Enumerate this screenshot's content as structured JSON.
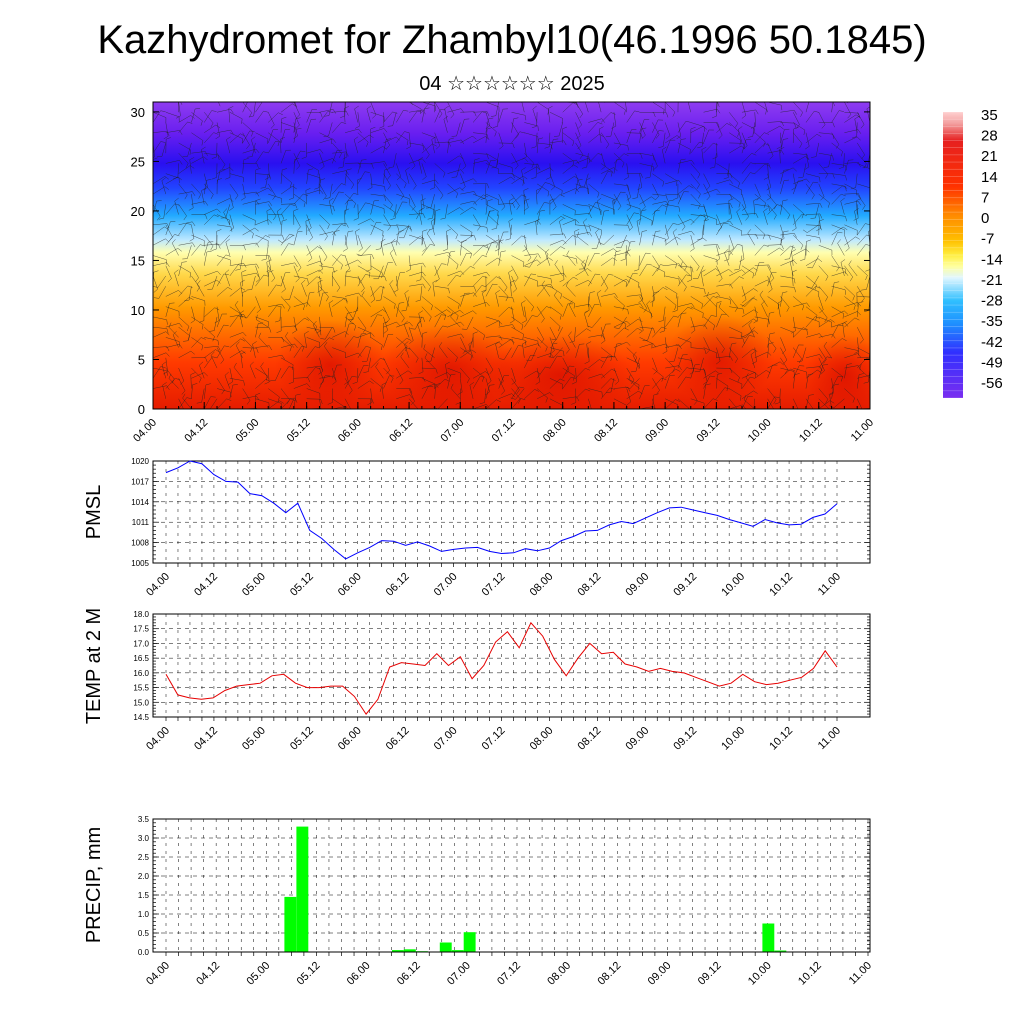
{
  "title": "Kazhydromet for Zhambyl10(46.1996 50.1845)",
  "subtitle": "04 ☆☆☆☆☆☆ 2025",
  "chart_data": [
    {
      "type": "heatmap",
      "ylim": [
        0,
        31
      ],
      "y_ticks": [
        "0",
        "5",
        "10",
        "15",
        "20",
        "25",
        "30"
      ],
      "x_ticks": [
        "04.00",
        "04.12",
        "05.00",
        "05.12",
        "06.00",
        "06.12",
        "07.00",
        "07.12",
        "08.00",
        "08.12",
        "09.00",
        "09.12",
        "10.00",
        "10.12",
        "11.00"
      ],
      "colorbar_labels": [
        "35",
        "28",
        "21",
        "14",
        "7",
        "0",
        "-7",
        "-14",
        "-21",
        "-28",
        "-35",
        "-42",
        "-49",
        "-56"
      ],
      "colors": {
        "warm": "#e60000",
        "mid": "#ffff80",
        "cold": "#3300ff",
        "top": "#8a2be2"
      },
      "overlay": "wind barbs"
    },
    {
      "type": "line",
      "ylabel": "PMSL",
      "ylim": [
        1005,
        1020
      ],
      "y_ticks": [
        "1005",
        "1008",
        "1011",
        "1014",
        "1017",
        "1020"
      ],
      "x_ticks": [
        "04.00",
        "04.12",
        "05.00",
        "05.12",
        "06.00",
        "06.12",
        "07.00",
        "07.12",
        "08.00",
        "08.12",
        "09.00",
        "09.12",
        "10.00",
        "10.12",
        "11.00"
      ],
      "color": "#0000ff",
      "values": [
        1018.3,
        1019.0,
        1020.0,
        1019.6,
        1018.0,
        1017.0,
        1016.9,
        1015.2,
        1014.9,
        1013.8,
        1012.4,
        1013.8,
        1009.8,
        1008.6,
        1007.0,
        1005.6,
        1006.5,
        1007.3,
        1008.3,
        1008.2,
        1007.6,
        1008.1,
        1007.5,
        1006.7,
        1007.0,
        1007.2,
        1007.3,
        1006.7,
        1006.4,
        1006.5,
        1007.1,
        1006.8,
        1007.2,
        1008.3,
        1008.9,
        1009.7,
        1009.8,
        1010.6,
        1011.1,
        1010.8,
        1011.6,
        1012.4,
        1013.1,
        1013.2,
        1012.8,
        1012.4,
        1012.0,
        1011.4,
        1010.9,
        1010.4,
        1011.4,
        1010.9,
        1010.6,
        1010.7,
        1011.7,
        1012.2,
        1013.7
      ]
    },
    {
      "type": "line",
      "ylabel": "TEMP at 2 M",
      "ylim": [
        14.5,
        18.0
      ],
      "y_ticks": [
        "14.5",
        "15.0",
        "15.5",
        "16.0",
        "16.5",
        "17.0",
        "17.5",
        "18.0"
      ],
      "x_ticks": [
        "04.00",
        "04.12",
        "05.00",
        "05.12",
        "06.00",
        "06.12",
        "07.00",
        "07.12",
        "08.00",
        "08.12",
        "09.00",
        "09.12",
        "10.00",
        "10.12",
        "11.00"
      ],
      "color": "#e60000",
      "values": [
        15.95,
        15.25,
        15.15,
        15.1,
        15.15,
        15.4,
        15.55,
        15.6,
        15.65,
        15.9,
        15.95,
        15.65,
        15.5,
        15.5,
        15.55,
        15.55,
        15.2,
        14.6,
        15.1,
        16.2,
        16.35,
        16.3,
        16.25,
        16.65,
        16.25,
        16.55,
        15.8,
        16.25,
        17.05,
        17.4,
        16.85,
        17.7,
        17.25,
        16.45,
        15.9,
        16.5,
        17.0,
        16.65,
        16.7,
        16.3,
        16.2,
        16.05,
        16.15,
        16.05,
        16.0,
        15.85,
        15.7,
        15.55,
        15.65,
        15.95,
        15.7,
        15.6,
        15.65,
        15.75,
        15.85,
        16.15,
        16.75,
        16.2
      ]
    },
    {
      "type": "bar",
      "ylabel": "PRECIP, mm",
      "ylim": [
        0,
        3.5
      ],
      "y_ticks": [
        "0.0",
        "0.5",
        "1.0",
        "1.5",
        "2.0",
        "2.5",
        "3.0",
        "3.5"
      ],
      "x_ticks": [
        "04.00",
        "04.12",
        "05.00",
        "05.12",
        "06.00",
        "06.12",
        "07.00",
        "07.12",
        "08.00",
        "08.12",
        "09.00",
        "09.12",
        "10.00",
        "10.12",
        "11.00"
      ],
      "color": "#00ff00",
      "values": [
        0,
        0,
        0,
        0,
        0,
        0,
        0,
        0,
        0,
        0,
        0,
        1.45,
        3.3,
        0,
        0,
        0,
        0,
        0,
        0,
        0,
        0.05,
        0.07,
        0.02,
        0,
        0.25,
        0.05,
        0.52,
        0,
        0,
        0,
        0,
        0,
        0,
        0,
        0,
        0,
        0,
        0,
        0,
        0,
        0,
        0,
        0,
        0,
        0,
        0,
        0,
        0,
        0,
        0,
        0,
        0.75,
        0.04,
        0,
        0,
        0,
        0,
        0,
        0,
        0
      ]
    }
  ]
}
